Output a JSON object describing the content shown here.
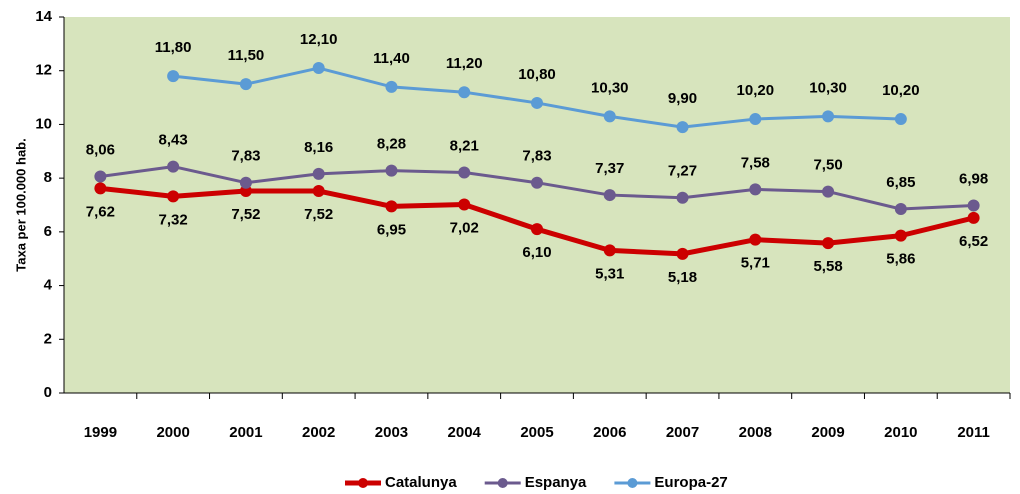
{
  "chart_data": {
    "type": "line",
    "y_label": "Taxa per 100.000 hab.",
    "categories": [
      "1999",
      "2000",
      "2001",
      "2002",
      "2003",
      "2004",
      "2005",
      "2006",
      "2007",
      "2008",
      "2009",
      "2010",
      "2011"
    ],
    "series": [
      {
        "name": "Catalunya",
        "color": "#cc0000",
        "values": [
          7.62,
          7.32,
          7.52,
          7.52,
          6.95,
          7.02,
          6.1,
          5.31,
          5.18,
          5.71,
          5.58,
          5.86,
          6.52
        ],
        "value_labels": [
          "7,62",
          "7,32",
          "7,52",
          "7,52",
          "6,95",
          "7,02",
          "6,10",
          "5,31",
          "5,18",
          "5,71",
          "5,58",
          "5,86",
          "6,52"
        ]
      },
      {
        "name": "Espanya",
        "color": "#6b5a8e",
        "values": [
          8.06,
          8.43,
          7.83,
          8.16,
          8.28,
          8.21,
          7.83,
          7.37,
          7.27,
          7.58,
          7.5,
          6.85,
          6.98
        ],
        "value_labels": [
          "8,06",
          "8,43",
          "7,83",
          "8,16",
          "8,28",
          "8,21",
          "7,83",
          "7,37",
          "7,27",
          "7,58",
          "7,50",
          "6,85",
          "6,98"
        ]
      },
      {
        "name": "Europa-27",
        "color": "#5b9bd5",
        "values": [
          null,
          11.8,
          11.5,
          12.1,
          11.4,
          11.2,
          10.8,
          10.3,
          9.9,
          10.2,
          10.3,
          10.2,
          null
        ],
        "value_labels": [
          null,
          "11,80",
          "11,50",
          "12,10",
          "11,40",
          "11,20",
          "10,80",
          "10,30",
          "9,90",
          "10,20",
          "10,30",
          "10,20",
          null
        ]
      }
    ],
    "ylim": [
      0,
      14
    ],
    "yticks": [
      0,
      2,
      4,
      6,
      8,
      10,
      12,
      14
    ],
    "grid": false,
    "legend": "bottom"
  }
}
